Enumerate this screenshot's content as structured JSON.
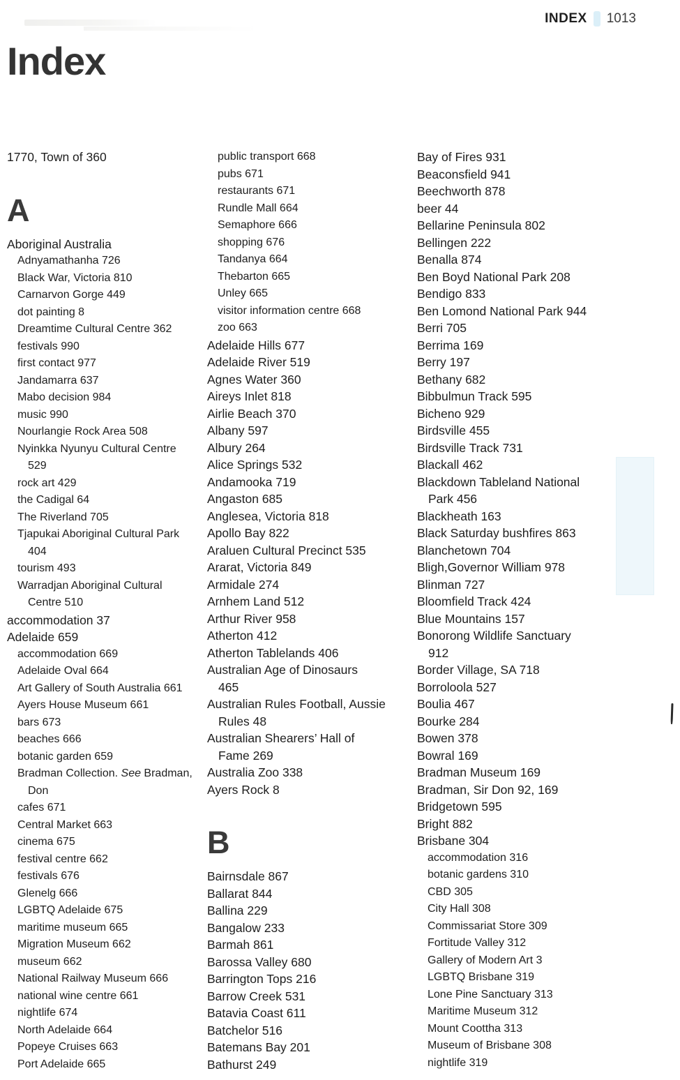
{
  "header": {
    "label": "INDEX",
    "page_number": "1013"
  },
  "title": "Index",
  "colors": {
    "highlight": "#cfe9f6"
  },
  "columns": [
    {
      "items": [
        {
          "type": "main",
          "line1": "1770, Town of 360"
        },
        {
          "type": "section",
          "line1": "A"
        },
        {
          "type": "main",
          "line1": "Aboriginal Australia"
        },
        {
          "type": "sub",
          "line1": "Adnyamathanha 726"
        },
        {
          "type": "sub",
          "line1": "Black War, Victoria 810"
        },
        {
          "type": "sub",
          "line1": "Carnarvon Gorge 449"
        },
        {
          "type": "sub",
          "line1": "dot painting 8"
        },
        {
          "type": "sub",
          "line1": "Dreamtime Cultural Centre 362"
        },
        {
          "type": "sub",
          "line1": "festivals 990"
        },
        {
          "type": "sub",
          "line1": "first contact 977"
        },
        {
          "type": "sub",
          "line1": "Jandamarra 637"
        },
        {
          "type": "sub",
          "line1": "Mabo decision 984"
        },
        {
          "type": "sub",
          "line1": "music 990"
        },
        {
          "type": "sub",
          "line1": "Nourlangie Rock Area 508"
        },
        {
          "type": "sub",
          "line1": "Nyinkka Nyunyu Cultural Centre",
          "line2": "529"
        },
        {
          "type": "sub",
          "line1": "rock art 429"
        },
        {
          "type": "sub",
          "line1": "the Cadigal 64"
        },
        {
          "type": "sub",
          "line1": "The Riverland 705"
        },
        {
          "type": "sub",
          "line1": "Tjapukai Aboriginal Cultural Park",
          "line2": "404"
        },
        {
          "type": "sub",
          "line1": "tourism 493"
        },
        {
          "type": "sub",
          "line1": "Warradjan Aboriginal Cultural",
          "line2": "Centre 510"
        },
        {
          "type": "main",
          "line1": "accommodation 37"
        },
        {
          "type": "main",
          "line1": "Adelaide 659"
        },
        {
          "type": "sub",
          "line1": "accommodation 669"
        },
        {
          "type": "sub",
          "line1": "Adelaide Oval 664"
        },
        {
          "type": "sub",
          "line1": "Art Gallery of South Australia 661"
        },
        {
          "type": "sub",
          "line1": "Ayers House Museum 661"
        },
        {
          "type": "sub",
          "line1": "bars 673"
        },
        {
          "type": "sub",
          "line1": "beaches 666"
        },
        {
          "type": "sub",
          "line1": "botanic garden 659"
        },
        {
          "type": "sub",
          "parts": [
            {
              "t": "Bradman Collection. "
            },
            {
              "t": "See",
              "i": true
            },
            {
              "t": " Bradman,"
            }
          ],
          "line2": "Don"
        },
        {
          "type": "sub",
          "line1": "cafes 671"
        },
        {
          "type": "sub",
          "line1": "Central Market 663"
        },
        {
          "type": "sub",
          "line1": "cinema 675"
        },
        {
          "type": "sub",
          "line1": "festival centre 662"
        },
        {
          "type": "sub",
          "line1": "festivals 676"
        },
        {
          "type": "sub",
          "line1": "Glenelg 666"
        },
        {
          "type": "sub",
          "line1": "LGBTQ Adelaide 675"
        },
        {
          "type": "sub",
          "line1": "maritime museum 665"
        },
        {
          "type": "sub",
          "line1": "Migration Museum 662"
        },
        {
          "type": "sub",
          "line1": "museum 662"
        },
        {
          "type": "sub",
          "line1": "National Railway Museum 666"
        },
        {
          "type": "sub",
          "line1": "national wine centre 661"
        },
        {
          "type": "sub",
          "line1": "nightlife 674"
        },
        {
          "type": "sub",
          "line1": "North Adelaide 664"
        },
        {
          "type": "sub",
          "line1": "Popeye Cruises 663"
        },
        {
          "type": "sub",
          "line1": "Port Adelaide 665"
        }
      ]
    },
    {
      "items": [
        {
          "type": "sub",
          "line1": "public transport 668"
        },
        {
          "type": "sub",
          "line1": "pubs 671"
        },
        {
          "type": "sub",
          "line1": "restaurants 671"
        },
        {
          "type": "sub",
          "line1": "Rundle Mall 664"
        },
        {
          "type": "sub",
          "line1": "Semaphore 666"
        },
        {
          "type": "sub",
          "line1": "shopping 676"
        },
        {
          "type": "sub",
          "line1": "Tandanya 664"
        },
        {
          "type": "sub",
          "line1": "Thebarton 665"
        },
        {
          "type": "sub",
          "line1": "Unley 665"
        },
        {
          "type": "sub",
          "line1": "visitor information centre 668"
        },
        {
          "type": "sub",
          "line1": "zoo 663"
        },
        {
          "type": "main",
          "line1": "Adelaide Hills 677"
        },
        {
          "type": "main",
          "line1": "Adelaide River 519"
        },
        {
          "type": "main",
          "line1": "Agnes Water 360"
        },
        {
          "type": "main",
          "line1": "Aireys Inlet 818"
        },
        {
          "type": "main",
          "line1": "Airlie Beach 370"
        },
        {
          "type": "main",
          "line1": "Albany 597"
        },
        {
          "type": "main",
          "line1": "Albury 264"
        },
        {
          "type": "main",
          "line1": "Alice Springs 532"
        },
        {
          "type": "main",
          "line1": "Andamooka 719"
        },
        {
          "type": "main",
          "line1": "Angaston 685"
        },
        {
          "type": "main",
          "line1": "Anglesea, Victoria 818"
        },
        {
          "type": "main",
          "line1": "Apollo Bay 822"
        },
        {
          "type": "main",
          "line1": "Araluen Cultural Precinct 535"
        },
        {
          "type": "main",
          "line1": "Ararat, Victoria 849"
        },
        {
          "type": "main",
          "line1": "Armidale 274"
        },
        {
          "type": "main",
          "line1": "Arnhem Land 512"
        },
        {
          "type": "main",
          "line1": "Arthur River 958"
        },
        {
          "type": "main",
          "line1": "Atherton 412"
        },
        {
          "type": "main",
          "line1": "Atherton Tablelands 406"
        },
        {
          "type": "main",
          "line1": "Australian Age of Dinosaurs",
          "line2": "465"
        },
        {
          "type": "main",
          "line1": "Australian Rules Football, Aussie",
          "line2": "Rules 48"
        },
        {
          "type": "main",
          "line1": "Australian Shearers’ Hall of",
          "line2": "Fame 269"
        },
        {
          "type": "main",
          "line1": "Australia Zoo 338"
        },
        {
          "type": "main",
          "line1": "Ayers Rock 8"
        },
        {
          "type": "section",
          "line1": "B"
        },
        {
          "type": "main",
          "line1": "Bairnsdale 867"
        },
        {
          "type": "main",
          "line1": "Ballarat 844"
        },
        {
          "type": "main",
          "line1": "Ballina 229"
        },
        {
          "type": "main",
          "line1": "Bangalow 233"
        },
        {
          "type": "main",
          "line1": "Barmah 861"
        },
        {
          "type": "main",
          "line1": "Barossa Valley 680"
        },
        {
          "type": "main",
          "line1": "Barrington Tops 216"
        },
        {
          "type": "main",
          "line1": "Barrow Creek 531"
        },
        {
          "type": "main",
          "line1": "Batavia Coast 611"
        },
        {
          "type": "main",
          "line1": "Batchelor 516"
        },
        {
          "type": "main",
          "line1": "Batemans Bay 201"
        },
        {
          "type": "main",
          "line1": "Bathurst 249"
        }
      ]
    },
    {
      "items": [
        {
          "type": "main",
          "line1": "Bay of Fires 931"
        },
        {
          "type": "main",
          "line1": "Beaconsfield 941"
        },
        {
          "type": "main",
          "line1": "Beechworth 878"
        },
        {
          "type": "main",
          "line1": "beer 44"
        },
        {
          "type": "main",
          "line1": "Bellarine Peninsula 802"
        },
        {
          "type": "main",
          "line1": "Bellingen 222"
        },
        {
          "type": "main",
          "line1": "Benalla 874"
        },
        {
          "type": "main",
          "line1": "Ben Boyd National Park 208"
        },
        {
          "type": "main",
          "line1": "Bendigo 833"
        },
        {
          "type": "main",
          "line1": "Ben Lomond National Park 944"
        },
        {
          "type": "main",
          "line1": "Berri 705"
        },
        {
          "type": "main",
          "line1": "Berrima 169"
        },
        {
          "type": "main",
          "line1": "Berry 197"
        },
        {
          "type": "main",
          "line1": "Bethany 682"
        },
        {
          "type": "main",
          "line1": "Bibbulmun Track 595"
        },
        {
          "type": "main",
          "line1": "Bicheno 929"
        },
        {
          "type": "main",
          "line1": "Birdsville 455"
        },
        {
          "type": "main",
          "line1": "Birdsville Track 731"
        },
        {
          "type": "main",
          "line1": "Blackall 462"
        },
        {
          "type": "main",
          "line1": "Blackdown Tableland National",
          "line2": "Park 456"
        },
        {
          "type": "main",
          "line1": "Blackheath 163"
        },
        {
          "type": "main",
          "line1": "Black Saturday bushfires 863"
        },
        {
          "type": "main",
          "line1": "Blanchetown 704"
        },
        {
          "type": "main",
          "line1": "Bligh,Governor William 978"
        },
        {
          "type": "main",
          "line1": "Blinman 727"
        },
        {
          "type": "main",
          "line1": "Bloomfield Track 424"
        },
        {
          "type": "main",
          "line1": "Blue Mountains 157"
        },
        {
          "type": "main",
          "line1": "Bonorong Wildlife Sanctuary",
          "line2": "912"
        },
        {
          "type": "main",
          "line1": "Border Village, SA 718"
        },
        {
          "type": "main",
          "line1": "Borroloola 527"
        },
        {
          "type": "main",
          "line1": "Boulia 467"
        },
        {
          "type": "main",
          "line1": "Bourke 284"
        },
        {
          "type": "main",
          "line1": "Bowen 378"
        },
        {
          "type": "main",
          "line1": "Bowral 169"
        },
        {
          "type": "main",
          "line1": "Bradman Museum 169"
        },
        {
          "type": "main",
          "line1": "Bradman, Sir Don 92, 169"
        },
        {
          "type": "main",
          "line1": "Bridgetown 595"
        },
        {
          "type": "main",
          "line1": "Bright 882"
        },
        {
          "type": "main",
          "line1": "Brisbane 304"
        },
        {
          "type": "sub",
          "line1": "accommodation 316"
        },
        {
          "type": "sub",
          "line1": "botanic gardens 310"
        },
        {
          "type": "sub",
          "line1": "CBD 305"
        },
        {
          "type": "sub",
          "line1": "City Hall 308"
        },
        {
          "type": "sub",
          "line1": "Commissariat Store 309"
        },
        {
          "type": "sub",
          "line1": "Fortitude Valley 312"
        },
        {
          "type": "sub",
          "line1": "Gallery of Modern Art 3"
        },
        {
          "type": "sub",
          "line1": "LGBTQ Brisbane 319"
        },
        {
          "type": "sub",
          "line1": "Lone Pine Sanctuary 313"
        },
        {
          "type": "sub",
          "line1": "Maritime Museum 312"
        },
        {
          "type": "sub",
          "line1": "Mount Coottha 313"
        },
        {
          "type": "sub",
          "line1": "Museum of Brisbane 308"
        },
        {
          "type": "sub",
          "line1": "nightlife 319"
        }
      ]
    }
  ]
}
